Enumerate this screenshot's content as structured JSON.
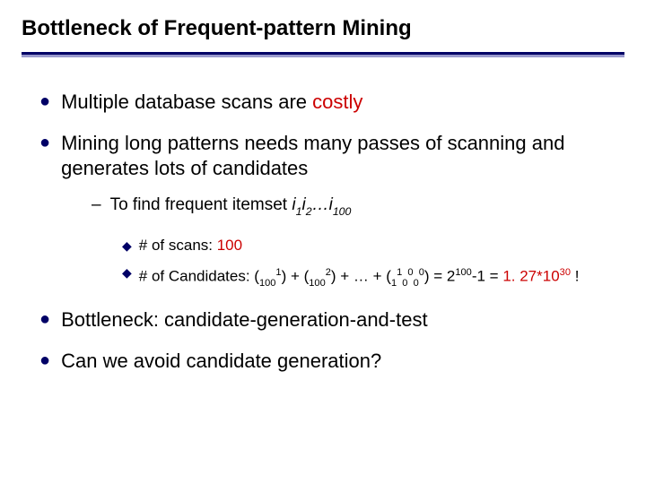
{
  "title": "Bottleneck of Frequent-pattern Mining",
  "rule_top_color": "#000066",
  "rule_bottom_color": "#9999cc",
  "bullet_l1_color": "#000066",
  "bullet_l3_color": "#000066",
  "red_color": "#cc0000",
  "b1_prefix": "Multiple database scans are ",
  "b1_red": "costly",
  "b2": "Mining long patterns needs many passes of scanning and generates lots of candidates",
  "b2_sub_prefix": "To find frequent itemset ",
  "b2_sub_i1": "i",
  "b2_sub_s1": "1",
  "b2_sub_i2": "i",
  "b2_sub_s2": "2",
  "b2_sub_dots": "…",
  "b2_sub_i3": "i",
  "b2_sub_s3": "100",
  "b2_l3a_prefix": "# of scans: ",
  "b2_l3a_red": "100",
  "b2_l3b_p1": "# of Candidates: (",
  "b2_l3b_sub1": "100",
  "b2_l3b_sup1": "1",
  "b2_l3b_p2": ") + (",
  "b2_l3b_sub2": "100",
  "b2_l3b_sup2": "2",
  "b2_l3b_p3": ") + … + (",
  "b2_l3b_sub3a": "1",
  "b2_l3b_sup3a": "1",
  "b2_l3b_sub3b": "0",
  "b2_l3b_sup3b": "0",
  "b2_l3b_sub3c": "0",
  "b2_l3b_sup3c": "0",
  "b2_l3b_p4": ") = 2",
  "b2_l3b_sup4": "100",
  "b2_l3b_p5": "-1 = ",
  "b2_l3b_red": "1. 27*10",
  "b2_l3b_red_sup": "30",
  "b2_l3b_excl": " !",
  "b3": "Bottleneck: candidate-generation-and-test",
  "b4": "Can we avoid candidate generation?"
}
